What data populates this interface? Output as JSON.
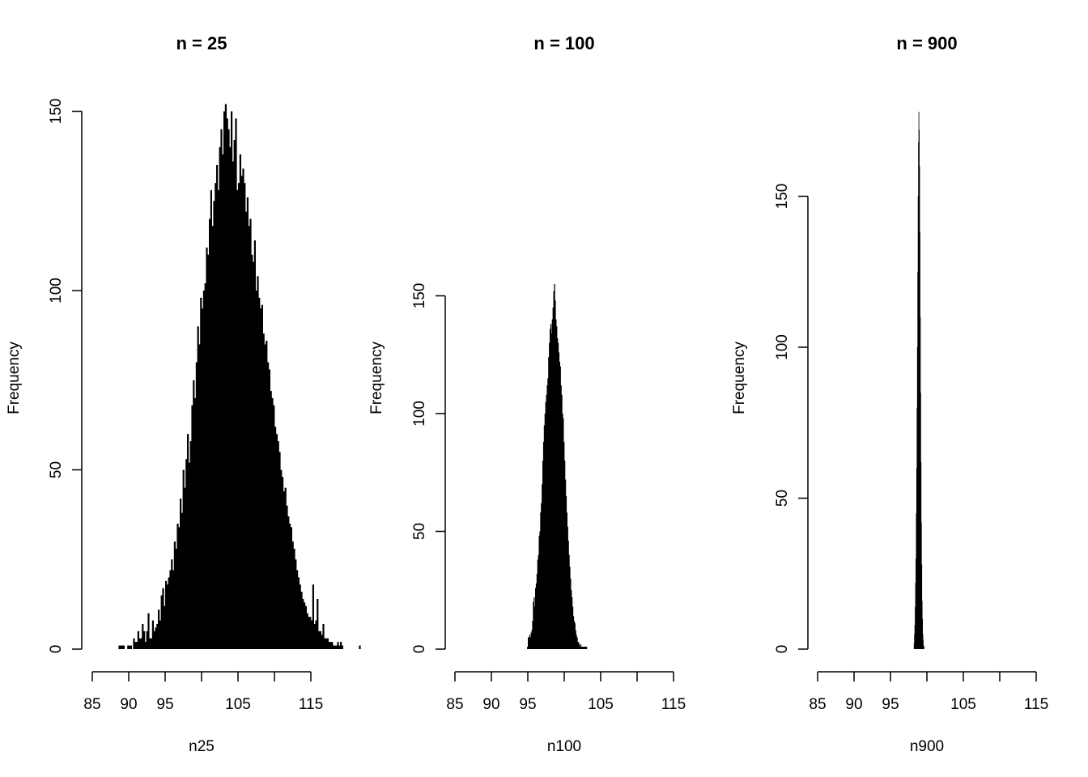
{
  "chart_data": [
    {
      "type": "bar",
      "title": "n = 25",
      "xlabel": "n25",
      "ylabel": "Frequency",
      "xlim": [
        85,
        115
      ],
      "x_ticks": [
        85,
        90,
        95,
        105,
        115
      ],
      "y_ticks": [
        0,
        50,
        100,
        150
      ],
      "bin_start": 88.6,
      "bin_width": 0.2,
      "values": [
        1,
        1,
        1,
        1,
        0,
        0,
        1,
        1,
        1,
        0,
        3,
        2,
        2,
        5,
        3,
        3,
        7,
        5,
        2,
        5,
        10,
        3,
        3,
        8,
        5,
        6,
        7,
        11,
        8,
        15,
        17,
        12,
        19,
        18,
        20,
        22,
        25,
        22,
        30,
        28,
        35,
        34,
        42,
        38,
        50,
        45,
        53,
        60,
        52,
        58,
        68,
        75,
        70,
        80,
        90,
        85,
        98,
        95,
        100,
        102,
        112,
        110,
        120,
        128,
        118,
        125,
        130,
        135,
        128,
        140,
        145,
        138,
        150,
        152,
        148,
        145,
        140,
        150,
        136,
        142,
        148,
        128,
        130,
        138,
        132,
        134,
        130,
        122,
        126,
        118,
        120,
        110,
        108,
        114,
        100,
        104,
        98,
        95,
        96,
        88,
        85,
        86,
        80,
        78,
        72,
        70,
        68,
        62,
        60,
        58,
        55,
        50,
        48,
        44,
        45,
        40,
        37,
        35,
        34,
        30,
        28,
        25,
        22,
        20,
        18,
        16,
        14,
        13,
        12,
        10,
        9,
        9,
        8,
        18,
        7,
        8,
        14,
        5,
        5,
        4,
        7,
        3,
        3,
        3,
        2,
        2,
        2,
        1,
        1,
        1,
        2,
        1,
        2,
        1,
        0,
        0,
        0,
        0,
        0,
        0,
        0,
        0,
        0,
        0,
        0,
        1
      ]
    },
    {
      "type": "bar",
      "title": "n = 100",
      "xlabel": "n100",
      "ylabel": "Frequency",
      "xlim": [
        85,
        115
      ],
      "x_ticks": [
        85,
        90,
        95,
        105,
        115
      ],
      "y_ticks": [
        0,
        50,
        100,
        150
      ],
      "bin_start": 94.9,
      "bin_width": 0.1,
      "values": [
        1,
        5,
        5,
        6,
        5,
        7,
        8,
        12,
        20,
        22,
        18,
        26,
        28,
        32,
        38,
        40,
        48,
        50,
        58,
        62,
        70,
        80,
        88,
        95,
        100,
        105,
        108,
        112,
        115,
        124,
        130,
        136,
        138,
        134,
        140,
        145,
        152,
        155,
        148,
        140,
        137,
        132,
        130,
        126,
        122,
        120,
        112,
        108,
        100,
        98,
        88,
        80,
        72,
        65,
        58,
        52,
        46,
        40,
        35,
        30,
        25,
        22,
        18,
        14,
        12,
        11,
        8,
        6,
        5,
        3,
        3,
        2,
        1,
        2,
        1,
        1,
        1,
        1,
        1,
        1,
        1,
        1
      ]
    },
    {
      "type": "bar",
      "title": "n = 900",
      "xlabel": "n900",
      "ylabel": "Frequency",
      "xlim": [
        85,
        115
      ],
      "x_ticks": [
        85,
        90,
        95,
        105,
        115
      ],
      "y_ticks": [
        0,
        50,
        100,
        150
      ],
      "bin_start": 98.2,
      "bin_width": 0.05,
      "values": [
        2,
        5,
        8,
        14,
        22,
        30,
        45,
        60,
        80,
        100,
        125,
        150,
        168,
        178,
        172,
        160,
        138,
        110,
        85,
        62,
        42,
        28,
        16,
        10,
        5,
        3,
        1,
        1
      ]
    }
  ]
}
